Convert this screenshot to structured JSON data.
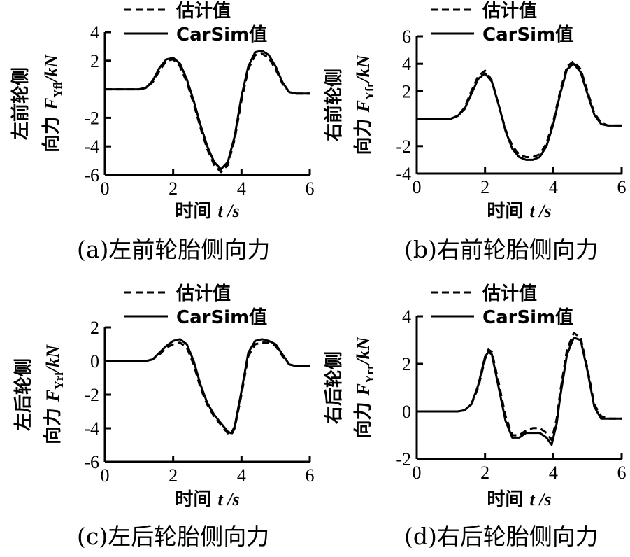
{
  "chart_data": [
    {
      "type": "line",
      "caption": "(a)左前轮胎侧向力",
      "xlabel": "时间",
      "xlabel_var": "t",
      "xlabel_unit": "/s",
      "ylabel_line1": "左前轮侧",
      "ylabel_line2_prefix": "向力",
      "ylabel_symbol": "F",
      "ylabel_subscript": "Yfl",
      "ylabel_unit": "/kN",
      "xlim": [
        0,
        6
      ],
      "ylim": [
        -6,
        4
      ],
      "xticks": [
        "0",
        "2",
        "4",
        "6"
      ],
      "yticks": [
        "4",
        "2",
        "-2",
        "-4",
        "-6"
      ],
      "ytick_values": [
        4,
        2,
        -2,
        -4,
        -6
      ],
      "legend": [
        "估计值",
        "CarSim值"
      ],
      "series": [
        {
          "name": "估计值",
          "style": "dashed",
          "x": [
            0,
            0.5,
            1.0,
            1.2,
            1.4,
            1.6,
            1.8,
            2.0,
            2.2,
            2.4,
            2.6,
            2.8,
            3.0,
            3.2,
            3.4,
            3.6,
            3.8,
            4.0,
            4.2,
            4.4,
            4.6,
            4.8,
            5.0,
            5.2,
            5.4,
            5.6,
            5.8,
            6.0
          ],
          "values": [
            0,
            0,
            0,
            0.1,
            0.5,
            1.3,
            2.0,
            2.1,
            1.6,
            0.5,
            -1.0,
            -2.7,
            -4.2,
            -5.3,
            -5.8,
            -5.3,
            -3.5,
            -0.8,
            1.4,
            2.4,
            2.5,
            2.2,
            1.4,
            0.4,
            -0.2,
            -0.3,
            -0.3,
            -0.3
          ]
        },
        {
          "name": "CarSim值",
          "style": "solid",
          "x": [
            0,
            0.5,
            1.0,
            1.2,
            1.4,
            1.6,
            1.8,
            2.0,
            2.2,
            2.4,
            2.6,
            2.8,
            3.0,
            3.2,
            3.4,
            3.6,
            3.8,
            4.0,
            4.2,
            4.4,
            4.6,
            4.8,
            5.0,
            5.2,
            5.4,
            5.6,
            5.8,
            6.0
          ],
          "values": [
            0,
            0,
            0,
            0.1,
            0.6,
            1.5,
            2.1,
            2.2,
            1.8,
            0.7,
            -0.8,
            -2.5,
            -4.0,
            -5.1,
            -5.6,
            -5.1,
            -3.3,
            -0.5,
            1.6,
            2.6,
            2.7,
            2.4,
            1.6,
            0.5,
            -0.2,
            -0.3,
            -0.3,
            -0.3
          ]
        }
      ]
    },
    {
      "type": "line",
      "caption": "(b)右前轮胎侧向力",
      "xlabel": "时间",
      "xlabel_var": "t",
      "xlabel_unit": "/s",
      "ylabel_line1": "右前轮侧",
      "ylabel_line2_prefix": "向力",
      "ylabel_symbol": "F",
      "ylabel_subscript": "Yfr",
      "ylabel_unit": "/kN",
      "xlim": [
        0,
        6
      ],
      "ylim": [
        -4,
        6
      ],
      "xticks": [
        "0",
        "2",
        "4",
        "6"
      ],
      "yticks": [
        "6",
        "4",
        "2",
        "-2",
        "-4"
      ],
      "ytick_values": [
        6,
        4,
        2,
        -2,
        -4
      ],
      "legend": [
        "估计值",
        "CarSim值"
      ],
      "series": [
        {
          "name": "估计值",
          "style": "dashed",
          "x": [
            0,
            0.5,
            1.0,
            1.2,
            1.4,
            1.6,
            1.8,
            2.0,
            2.2,
            2.4,
            2.6,
            2.8,
            3.0,
            3.2,
            3.4,
            3.6,
            3.8,
            4.0,
            4.2,
            4.4,
            4.6,
            4.8,
            5.0,
            5.2,
            5.4,
            5.6,
            5.8,
            6.0
          ],
          "values": [
            0,
            0,
            0,
            0.2,
            0.8,
            2.0,
            3.1,
            3.5,
            2.8,
            1.0,
            -0.8,
            -2.0,
            -2.6,
            -2.8,
            -2.8,
            -2.6,
            -1.8,
            -0.2,
            2.0,
            3.8,
            4.2,
            3.6,
            2.0,
            0.4,
            -0.3,
            -0.5,
            -0.5,
            -0.5
          ]
        },
        {
          "name": "CarSim值",
          "style": "solid",
          "x": [
            0,
            0.5,
            1.0,
            1.2,
            1.4,
            1.6,
            1.8,
            2.0,
            2.2,
            2.4,
            2.6,
            2.8,
            3.0,
            3.2,
            3.4,
            3.6,
            3.8,
            4.0,
            4.2,
            4.4,
            4.6,
            4.8,
            5.0,
            5.2,
            5.4,
            5.6,
            5.8,
            6.0
          ],
          "values": [
            0,
            0,
            0,
            0.2,
            0.7,
            1.8,
            2.9,
            3.3,
            2.7,
            1.0,
            -0.9,
            -2.2,
            -2.8,
            -3.0,
            -3.0,
            -2.8,
            -2.0,
            -0.4,
            1.8,
            3.6,
            4.0,
            3.4,
            1.8,
            0.3,
            -0.4,
            -0.5,
            -0.5,
            -0.5
          ]
        }
      ]
    },
    {
      "type": "line",
      "caption": "(c)左后轮胎侧向力",
      "xlabel": "时间",
      "xlabel_var": "t",
      "xlabel_unit": "/s",
      "ylabel_line1": "左后轮侧",
      "ylabel_line2_prefix": "向力",
      "ylabel_symbol": "F",
      "ylabel_subscript": "Yrl",
      "ylabel_unit": "/kN",
      "xlim": [
        0,
        6
      ],
      "ylim": [
        -6,
        2
      ],
      "xticks": [
        "0",
        "2",
        "4",
        "6"
      ],
      "yticks": [
        "2",
        "0",
        "-2",
        "-4",
        "-6"
      ],
      "ytick_values": [
        2,
        0,
        -2,
        -4,
        -6
      ],
      "legend": [
        "估计值",
        "CarSim值"
      ],
      "series": [
        {
          "name": "估计值",
          "style": "dashed",
          "x": [
            0,
            0.5,
            1.0,
            1.2,
            1.4,
            1.6,
            1.8,
            2.0,
            2.2,
            2.4,
            2.6,
            2.8,
            3.0,
            3.2,
            3.4,
            3.6,
            3.7,
            3.8,
            4.0,
            4.2,
            4.4,
            4.6,
            4.8,
            5.0,
            5.2,
            5.4,
            5.6,
            5.8,
            6.0
          ],
          "values": [
            0,
            0,
            0,
            0,
            0.1,
            0.4,
            0.8,
            1.0,
            1.1,
            0.8,
            -0.2,
            -1.6,
            -2.6,
            -3.3,
            -3.8,
            -4.3,
            -4.4,
            -4.0,
            -2.0,
            0.3,
            1.0,
            1.1,
            1.1,
            0.9,
            0.3,
            -0.2,
            -0.3,
            -0.3,
            -0.3
          ]
        },
        {
          "name": "CarSim值",
          "style": "solid",
          "x": [
            0,
            0.5,
            1.0,
            1.2,
            1.4,
            1.6,
            1.8,
            2.0,
            2.2,
            2.4,
            2.6,
            2.8,
            3.0,
            3.2,
            3.4,
            3.6,
            3.7,
            3.8,
            4.0,
            4.2,
            4.4,
            4.6,
            4.8,
            5.0,
            5.2,
            5.4,
            5.6,
            5.8,
            6.0
          ],
          "values": [
            0,
            0,
            0,
            0,
            0.1,
            0.5,
            0.9,
            1.2,
            1.3,
            1.0,
            0,
            -1.4,
            -2.5,
            -3.2,
            -3.7,
            -4.2,
            -4.3,
            -3.9,
            -1.8,
            0.5,
            1.2,
            1.3,
            1.2,
            1.0,
            0.4,
            -0.2,
            -0.3,
            -0.3,
            -0.3
          ]
        }
      ]
    },
    {
      "type": "line",
      "caption": "(d)右后轮胎侧向力",
      "xlabel": "时间",
      "xlabel_var": "t",
      "xlabel_unit": "/s",
      "ylabel_line1": "右后轮侧",
      "ylabel_line2_prefix": "向力",
      "ylabel_symbol": "F",
      "ylabel_subscript": "Yrr",
      "ylabel_unit": "/kN",
      "xlim": [
        0,
        6
      ],
      "ylim": [
        -2,
        4
      ],
      "xticks": [
        "0",
        "2",
        "4",
        "6"
      ],
      "yticks": [
        "4",
        "2",
        "0",
        "-2"
      ],
      "ytick_values": [
        4,
        2,
        0,
        -2
      ],
      "legend": [
        "估计值",
        "CarSim值"
      ],
      "series": [
        {
          "name": "估计值",
          "style": "dashed",
          "x": [
            0,
            0.5,
            1.0,
            1.2,
            1.4,
            1.6,
            1.8,
            2.0,
            2.1,
            2.2,
            2.4,
            2.6,
            2.8,
            3.0,
            3.2,
            3.4,
            3.6,
            3.8,
            3.95,
            4.1,
            4.2,
            4.4,
            4.6,
            4.8,
            5.0,
            5.2,
            5.4,
            5.6,
            5.8,
            6.0
          ],
          "values": [
            0,
            0,
            0,
            0,
            0.05,
            0.3,
            1.0,
            2.2,
            2.6,
            2.5,
            1.2,
            -0.2,
            -1.0,
            -1.0,
            -0.8,
            -0.7,
            -0.7,
            -0.9,
            -1.2,
            -0.3,
            0.8,
            2.6,
            3.3,
            3.1,
            1.8,
            0.3,
            -0.2,
            -0.3,
            -0.3,
            -0.3
          ]
        },
        {
          "name": "CarSim值",
          "style": "solid",
          "x": [
            0,
            0.5,
            1.0,
            1.2,
            1.4,
            1.6,
            1.8,
            2.0,
            2.1,
            2.2,
            2.4,
            2.6,
            2.8,
            3.0,
            3.2,
            3.4,
            3.6,
            3.8,
            3.95,
            4.1,
            4.2,
            4.4,
            4.6,
            4.8,
            5.0,
            5.2,
            5.4,
            5.6,
            5.8,
            6.0
          ],
          "values": [
            0,
            0,
            0,
            0,
            0.05,
            0.3,
            1.1,
            2.3,
            2.5,
            2.4,
            1.0,
            -0.4,
            -1.1,
            -1.1,
            -0.9,
            -0.9,
            -0.9,
            -1.1,
            -1.4,
            -0.5,
            0.6,
            2.4,
            3.1,
            3.0,
            1.7,
            0.2,
            -0.3,
            -0.3,
            -0.3,
            -0.3
          ]
        }
      ]
    }
  ]
}
